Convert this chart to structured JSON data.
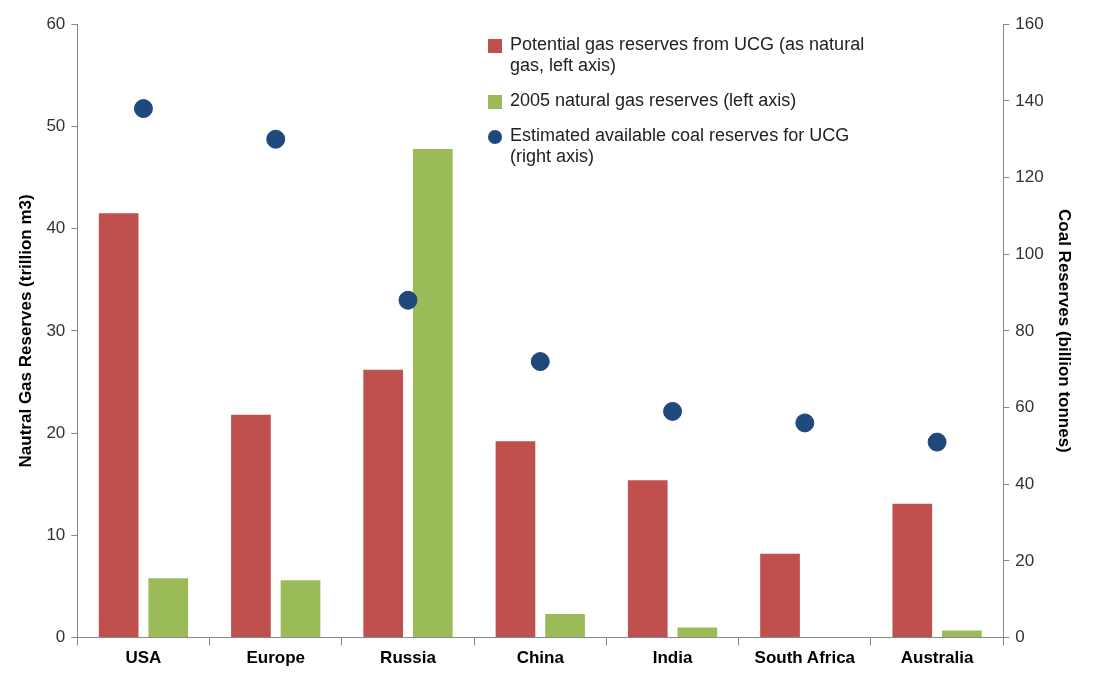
{
  "chart_data": {
    "type": "bar",
    "categories": [
      "USA",
      "Europe",
      "Russia",
      "China",
      "India",
      "South Africa",
      "Australia"
    ],
    "ylabel": "Nautral Gas Reserves (trillion m3)",
    "y2label": "Coal Reserves (billion tonnes)",
    "ylim": [
      0,
      60
    ],
    "yticks": [
      0,
      10,
      20,
      30,
      40,
      50,
      60
    ],
    "y2lim": [
      0,
      160
    ],
    "y2ticks": [
      0,
      20,
      40,
      60,
      80,
      100,
      120,
      140,
      160
    ],
    "legend": "top right",
    "marker": "circle",
    "series": [
      {
        "name": "Potential gas reserves from UCG (as natural gas, left axis)",
        "color": "#c0504d",
        "values": [
          41.5,
          21.8,
          26.2,
          19.2,
          15.4,
          8.2,
          13.1
        ]
      },
      {
        "name": "2005 natural gas reserves (left axis)",
        "color": "#9bbb59",
        "values": [
          5.8,
          5.6,
          47.8,
          2.3,
          1.0,
          0,
          0.7
        ]
      },
      {
        "name": "Estimated available coal reserves for UCG (right axis)",
        "type": "scatter",
        "axis": "y2",
        "color": "#1f497d",
        "values": [
          138,
          130,
          88,
          72,
          59,
          56,
          51
        ]
      }
    ]
  }
}
